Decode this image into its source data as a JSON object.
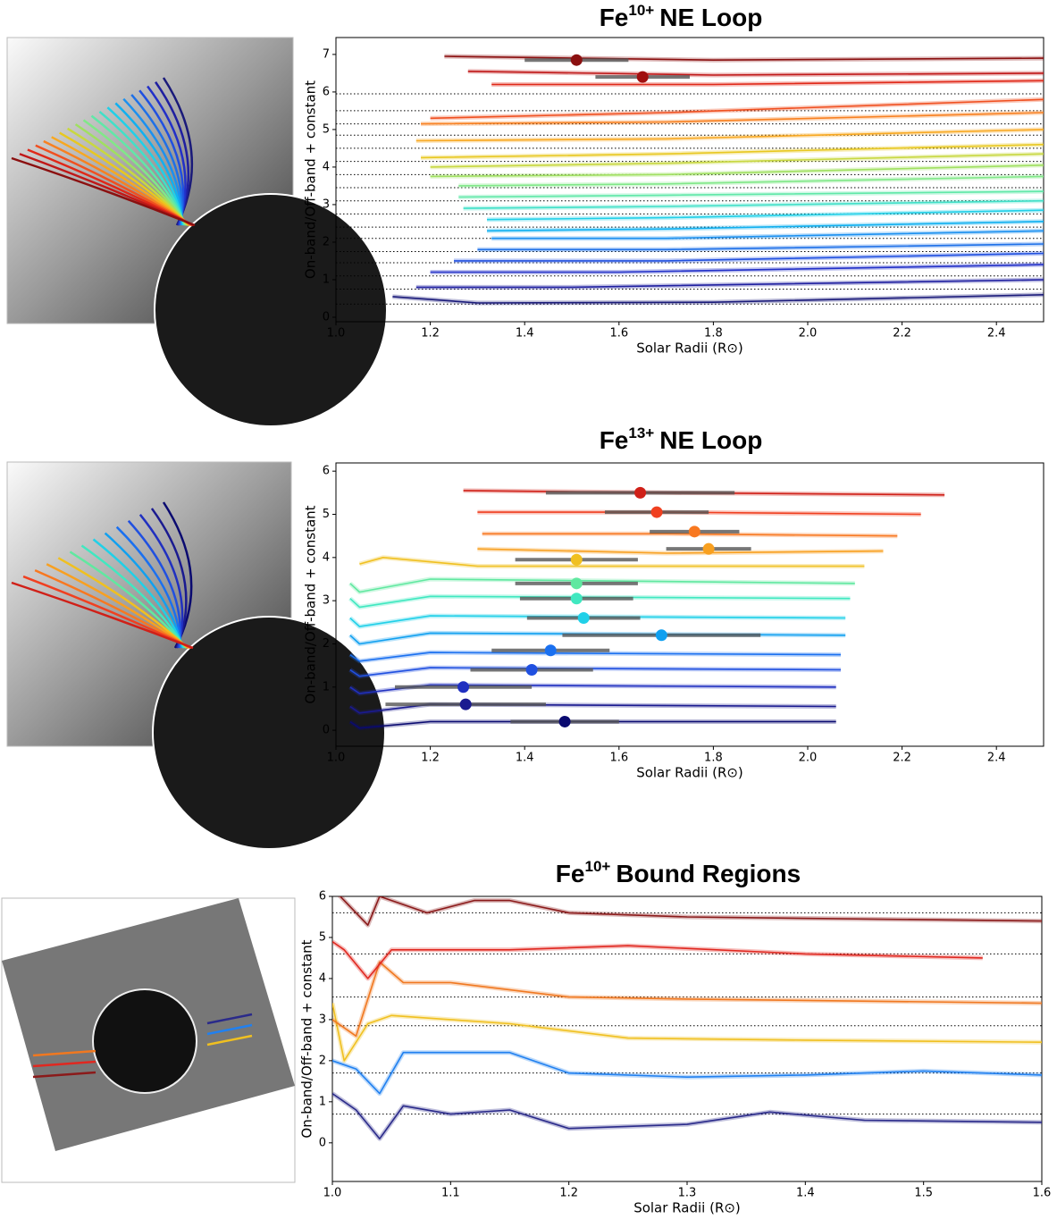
{
  "chart_data": [
    {
      "type": "line",
      "title": {
        "element": "Fe",
        "charge": "10+",
        "text": "NE Loop"
      },
      "xlabel": "Solar Radii (R⊙)",
      "ylabel": "On-band/Off-band + constant",
      "xlim": [
        1.0,
        2.5
      ],
      "ylim": [
        -0.12,
        7.45
      ],
      "xticks": [
        {
          "value": 1,
          "label": "1.0"
        },
        1.2,
        1.4,
        1.6,
        1.8,
        {
          "value": 2,
          "label": "2.0"
        },
        2.2,
        2.4
      ],
      "yticks": [
        0,
        1,
        2,
        3,
        4,
        5,
        6,
        7
      ],
      "hlines": [
        0.35,
        0.75,
        1.1,
        1.45,
        1.75,
        2.1,
        2.4,
        2.75,
        3.1,
        3.45,
        3.8,
        4.15,
        4.5,
        4.85,
        5.15,
        5.5,
        5.95
      ],
      "series": [
        {
          "color": "#1a1a7a",
          "x": [
            1.12,
            1.3,
            1.8,
            2.5
          ],
          "values": [
            0.55,
            0.38,
            0.4,
            0.6
          ]
        },
        {
          "color": "#1f1fa0",
          "x": [
            1.17,
            1.5,
            2.5
          ],
          "values": [
            0.8,
            0.8,
            1.0
          ]
        },
        {
          "color": "#2230c8",
          "x": [
            1.2,
            1.6,
            2.5
          ],
          "values": [
            1.2,
            1.2,
            1.4
          ]
        },
        {
          "color": "#2050e0",
          "x": [
            1.25,
            1.7,
            2.5
          ],
          "values": [
            1.5,
            1.5,
            1.7
          ]
        },
        {
          "color": "#1e70e8",
          "x": [
            1.3,
            1.7,
            2.5
          ],
          "values": [
            1.8,
            1.8,
            1.95
          ]
        },
        {
          "color": "#1a90f0",
          "x": [
            1.33,
            1.7,
            2.5
          ],
          "values": [
            2.1,
            2.1,
            2.3
          ]
        },
        {
          "color": "#10b0f0",
          "x": [
            1.32,
            1.7,
            2.5
          ],
          "values": [
            2.3,
            2.35,
            2.55
          ]
        },
        {
          "color": "#20d0e8",
          "x": [
            1.32,
            1.7,
            2.5
          ],
          "values": [
            2.6,
            2.65,
            2.85
          ]
        },
        {
          "color": "#40e0c8",
          "x": [
            1.27,
            1.7,
            2.5
          ],
          "values": [
            2.9,
            2.95,
            3.1
          ]
        },
        {
          "color": "#60e8a8",
          "x": [
            1.26,
            1.7,
            2.5
          ],
          "values": [
            3.2,
            3.25,
            3.35
          ]
        },
        {
          "color": "#80e888",
          "x": [
            1.26,
            1.7,
            2.5
          ],
          "values": [
            3.5,
            3.55,
            3.75
          ]
        },
        {
          "color": "#a0e060",
          "x": [
            1.2,
            1.7,
            2.5
          ],
          "values": [
            3.75,
            3.8,
            4.05
          ]
        },
        {
          "color": "#c8d840",
          "x": [
            1.2,
            1.7,
            2.5
          ],
          "values": [
            4.0,
            4.1,
            4.35
          ]
        },
        {
          "color": "#e8c820",
          "x": [
            1.18,
            1.7,
            2.5
          ],
          "values": [
            4.25,
            4.35,
            4.6
          ]
        },
        {
          "color": "#f8a820",
          "x": [
            1.17,
            1.7,
            2.5
          ],
          "values": [
            4.7,
            4.75,
            5.0
          ]
        },
        {
          "color": "#f88020",
          "x": [
            1.18,
            1.7,
            2.5
          ],
          "values": [
            5.15,
            5.2,
            5.45
          ]
        },
        {
          "color": "#f05020",
          "x": [
            1.2,
            1.7,
            2.5
          ],
          "values": [
            5.3,
            5.45,
            5.8
          ]
        },
        {
          "color": "#e02818",
          "x": [
            1.33,
            1.8,
            2.5
          ],
          "values": [
            6.2,
            6.2,
            6.3
          ]
        },
        {
          "color": "#c01818",
          "x": [
            1.28,
            1.8,
            2.5
          ],
          "values": [
            6.55,
            6.45,
            6.5
          ]
        },
        {
          "color": "#8b1010",
          "x": [
            1.23,
            1.8,
            2.5
          ],
          "values": [
            6.95,
            6.85,
            6.9
          ]
        }
      ],
      "points": [
        {
          "color": "#8b1010",
          "x": 1.51,
          "y": 6.85,
          "xerr": 0.11
        },
        {
          "color": "#a01010",
          "x": 1.65,
          "y": 6.4,
          "xerr": 0.1
        }
      ]
    },
    {
      "type": "line",
      "title": {
        "element": "Fe",
        "charge": "13+",
        "text": "NE Loop"
      },
      "xlabel": "Solar Radii (R⊙)",
      "ylabel": "On-band/Off-band + constant",
      "xlim": [
        1.0,
        2.5
      ],
      "ylim": [
        -0.37,
        6.19
      ],
      "xticks": [
        {
          "value": 1,
          "label": "1.0"
        },
        1.2,
        1.4,
        1.6,
        1.8,
        {
          "value": 2,
          "label": "2.0"
        },
        2.2,
        2.4
      ],
      "yticks": [
        0,
        1,
        2,
        3,
        4,
        5,
        6
      ],
      "hlines": [],
      "series": [
        {
          "color": "#0a0a70",
          "x": [
            1.03,
            1.05,
            1.2,
            2.06
          ],
          "values": [
            0.2,
            0.05,
            0.2,
            0.2
          ]
        },
        {
          "color": "#1a1a90",
          "x": [
            1.03,
            1.05,
            1.2,
            2.06
          ],
          "values": [
            0.55,
            0.4,
            0.6,
            0.55
          ]
        },
        {
          "color": "#2030c0",
          "x": [
            1.03,
            1.05,
            1.2,
            2.06
          ],
          "values": [
            1.0,
            0.85,
            1.05,
            1.0
          ]
        },
        {
          "color": "#2050e0",
          "x": [
            1.03,
            1.05,
            1.2,
            2.07
          ],
          "values": [
            1.4,
            1.25,
            1.45,
            1.4
          ]
        },
        {
          "color": "#1a70f0",
          "x": [
            1.03,
            1.05,
            1.2,
            2.07
          ],
          "values": [
            1.75,
            1.6,
            1.8,
            1.75
          ]
        },
        {
          "color": "#10a0f0",
          "x": [
            1.03,
            1.05,
            1.2,
            2.08
          ],
          "values": [
            2.2,
            2.0,
            2.25,
            2.2
          ]
        },
        {
          "color": "#20d0e8",
          "x": [
            1.03,
            1.05,
            1.2,
            2.08
          ],
          "values": [
            2.6,
            2.4,
            2.65,
            2.6
          ]
        },
        {
          "color": "#40e8c0",
          "x": [
            1.03,
            1.05,
            1.2,
            2.09
          ],
          "values": [
            3.05,
            2.85,
            3.1,
            3.05
          ]
        },
        {
          "color": "#60e8a0",
          "x": [
            1.03,
            1.05,
            1.2,
            2.1
          ],
          "values": [
            3.4,
            3.2,
            3.5,
            3.4
          ]
        },
        {
          "color": "#f0c020",
          "x": [
            1.05,
            1.1,
            1.3,
            2.12
          ],
          "values": [
            3.85,
            4.0,
            3.8,
            3.8
          ]
        },
        {
          "color": "#f8a020",
          "x": [
            1.3,
            1.7,
            2.16
          ],
          "values": [
            4.2,
            4.1,
            4.15
          ]
        },
        {
          "color": "#f87820",
          "x": [
            1.31,
            1.7,
            2.19
          ],
          "values": [
            4.55,
            4.55,
            4.5
          ]
        },
        {
          "color": "#f04020",
          "x": [
            1.3,
            1.7,
            2.24
          ],
          "values": [
            5.05,
            5.05,
            5.0
          ]
        },
        {
          "color": "#d02018",
          "x": [
            1.27,
            1.7,
            2.29
          ],
          "values": [
            5.55,
            5.5,
            5.45
          ]
        }
      ],
      "points": [
        {
          "color": "#0a0a70",
          "x": 1.485,
          "y": 0.2,
          "xerr": 0.115
        },
        {
          "color": "#1a1a90",
          "x": 1.275,
          "y": 0.6,
          "xerr": 0.17
        },
        {
          "color": "#2030c0",
          "x": 1.27,
          "y": 1.0,
          "xerr": 0.145
        },
        {
          "color": "#2050e0",
          "x": 1.415,
          "y": 1.4,
          "xerr": 0.13
        },
        {
          "color": "#1a70f0",
          "x": 1.455,
          "y": 1.85,
          "xerr": 0.125
        },
        {
          "color": "#10a0f0",
          "x": 1.69,
          "y": 2.2,
          "xerr": 0.21
        },
        {
          "color": "#20d0e8",
          "x": 1.525,
          "y": 2.6,
          "xerr": 0.12
        },
        {
          "color": "#40e8c0",
          "x": 1.51,
          "y": 3.05,
          "xerr": 0.12
        },
        {
          "color": "#60e8a0",
          "x": 1.51,
          "y": 3.4,
          "xerr": 0.13
        },
        {
          "color": "#f0c020",
          "x": 1.51,
          "y": 3.95,
          "xerr": 0.13
        },
        {
          "color": "#f8a020",
          "x": 1.79,
          "y": 4.2,
          "xerr": 0.09
        },
        {
          "color": "#f87820",
          "x": 1.76,
          "y": 4.6,
          "xerr": 0.095
        },
        {
          "color": "#f04020",
          "x": 1.68,
          "y": 5.05,
          "xerr": 0.11
        },
        {
          "color": "#d02018",
          "x": 1.645,
          "y": 5.5,
          "xerr": 0.2
        }
      ]
    },
    {
      "type": "line",
      "title": {
        "element": "Fe",
        "charge": "10+",
        "text": "Bound Regions"
      },
      "xlabel": "Solar Radii (R⊙)",
      "ylabel": "On-band/Off-band + constant",
      "xlim": [
        1.0,
        1.6
      ],
      "ylim": [
        -0.94,
        6.0
      ],
      "xticks": [
        {
          "value": 1,
          "label": "1.0"
        },
        1.1,
        1.2,
        1.3,
        1.4,
        1.5,
        1.6
      ],
      "yticks": [
        0,
        1,
        2,
        3,
        4,
        5,
        6
      ],
      "hlines": [
        0.7,
        1.7,
        2.85,
        3.55,
        4.6,
        5.6
      ],
      "series": [
        {
          "color": "#2a2a8a",
          "x": [
            1.0,
            1.02,
            1.04,
            1.06,
            1.1,
            1.15,
            1.2,
            1.3,
            1.37,
            1.45,
            1.6
          ],
          "values": [
            1.2,
            0.8,
            0.1,
            0.9,
            0.7,
            0.8,
            0.35,
            0.45,
            0.75,
            0.55,
            0.5
          ]
        },
        {
          "color": "#2080f0",
          "x": [
            1.0,
            1.02,
            1.04,
            1.06,
            1.1,
            1.15,
            1.2,
            1.3,
            1.4,
            1.5,
            1.6
          ],
          "values": [
            2.0,
            1.8,
            1.2,
            2.2,
            2.2,
            2.2,
            1.7,
            1.6,
            1.65,
            1.75,
            1.65
          ]
        },
        {
          "color": "#f0c020",
          "x": [
            1.0,
            1.01,
            1.03,
            1.05,
            1.1,
            1.15,
            1.25,
            1.4,
            1.6
          ],
          "values": [
            3.4,
            2.0,
            2.9,
            3.1,
            3.0,
            2.9,
            2.55,
            2.5,
            2.45
          ]
        },
        {
          "color": "#f07820",
          "x": [
            1.0,
            1.02,
            1.04,
            1.06,
            1.1,
            1.2,
            1.3,
            1.6
          ],
          "values": [
            3.0,
            2.6,
            4.4,
            3.9,
            3.9,
            3.55,
            3.5,
            3.4
          ]
        },
        {
          "color": "#e02820",
          "x": [
            1.0,
            1.01,
            1.03,
            1.05,
            1.1,
            1.15,
            1.25,
            1.4,
            1.55
          ],
          "values": [
            4.9,
            4.7,
            4.0,
            4.7,
            4.7,
            4.7,
            4.8,
            4.6,
            4.5
          ]
        },
        {
          "color": "#8b1a1a",
          "x": [
            1.0,
            1.01,
            1.03,
            1.04,
            1.08,
            1.12,
            1.15,
            1.2,
            1.3,
            1.6
          ],
          "values": [
            6.2,
            5.9,
            5.3,
            6.0,
            5.6,
            5.9,
            5.9,
            5.6,
            5.5,
            5.4
          ]
        }
      ],
      "points": []
    }
  ]
}
